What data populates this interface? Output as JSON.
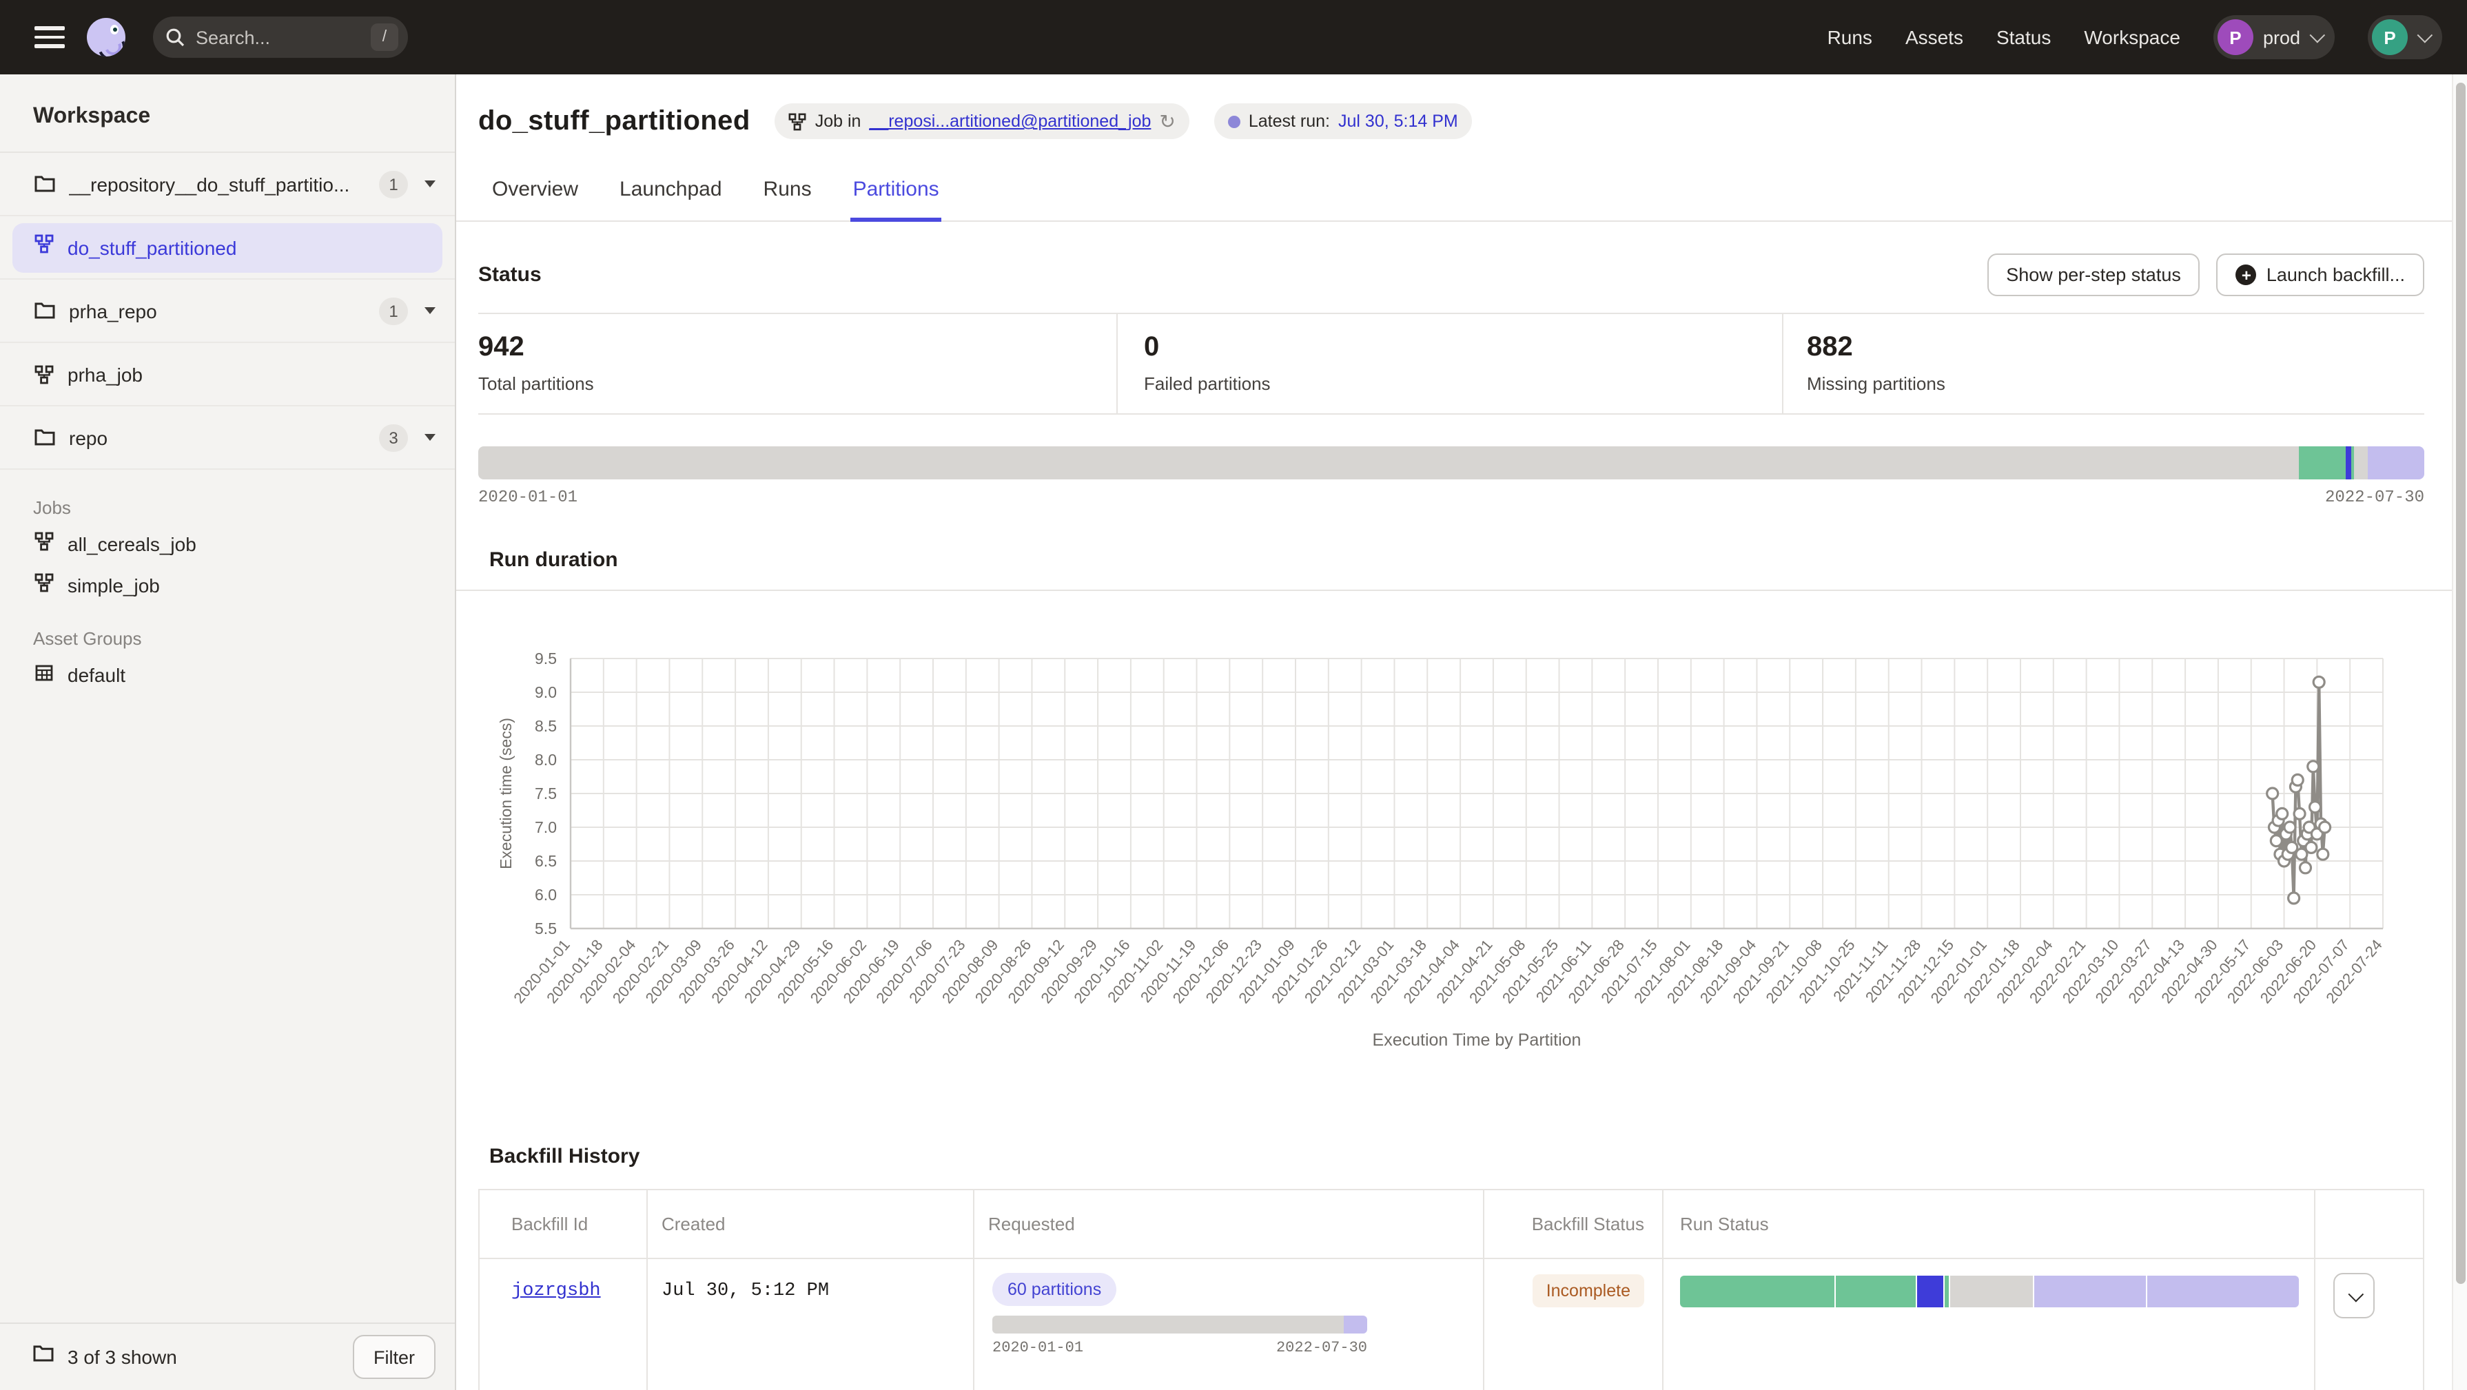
{
  "colors": {
    "accent_blurple": "#4543de",
    "link_blue": "#3231cf",
    "green": "#6ec496",
    "blue_stripe": "#3e3cd9",
    "lavender": "#c3bdee",
    "bar_gray": "#d7d5d2",
    "incomplete_bg": "#f9f1e8",
    "incomplete_text": "#aa5a22",
    "latest_run_dot": "#8d87d8",
    "chart_line": "#8f8c87",
    "avatar_purple": "#9e4bbb",
    "avatar_teal": "#35a183"
  },
  "navbar": {
    "search_placeholder": "Search...",
    "search_shortcut": "/",
    "links": [
      {
        "label": "Runs"
      },
      {
        "label": "Assets"
      },
      {
        "label": "Status"
      },
      {
        "label": "Workspace"
      }
    ],
    "deployment": {
      "initial": "P",
      "label": "prod"
    },
    "user": {
      "initial": "P"
    }
  },
  "sidebar": {
    "title": "Workspace",
    "repos": [
      {
        "label": "__repository__do_stuff_partitio...",
        "count": "1"
      },
      {
        "label": "prha_repo",
        "count": "1"
      },
      {
        "label": "repo",
        "count": "3"
      }
    ],
    "selected_job": "do_stuff_partitioned",
    "standalone_job": "prha_job",
    "sections": {
      "jobs": "Jobs",
      "asset_groups": "Asset Groups"
    },
    "jobs": [
      "all_cereals_job",
      "simple_job"
    ],
    "asset_groups": [
      "default"
    ],
    "footer": {
      "count_label": "3 of 3 shown",
      "filter_label": "Filter"
    }
  },
  "header": {
    "title": "do_stuff_partitioned",
    "job_tag": {
      "prefix": "Job in",
      "link": "__reposi...artitioned@partitioned_job"
    },
    "latest_run": {
      "label": "Latest run:",
      "value": "Jul 30, 5:14 PM"
    }
  },
  "tabs": [
    {
      "label": "Overview",
      "active": false
    },
    {
      "label": "Launchpad",
      "active": false
    },
    {
      "label": "Runs",
      "active": false
    },
    {
      "label": "Partitions",
      "active": true
    }
  ],
  "status_section": {
    "title": "Status",
    "show_per_step_label": "Show per-step status",
    "launch_backfill_label": "Launch backfill...",
    "stats": [
      {
        "value": "942",
        "label": "Total partitions"
      },
      {
        "value": "0",
        "label": "Failed partitions"
      },
      {
        "value": "882",
        "label": "Missing partitions"
      }
    ],
    "bar": {
      "start": "2020-01-01",
      "end": "2022-07-30",
      "segments": [
        {
          "color": "bar_gray",
          "pct": 93.55
        },
        {
          "color": "green",
          "pct": 2.41
        },
        {
          "color": "blue_stripe",
          "pct": 0.32
        },
        {
          "color": "green",
          "pct": 0.1
        },
        {
          "color": "bar_gray",
          "pct": 0.71
        },
        {
          "color": "lavender",
          "pct": 2.91
        }
      ]
    }
  },
  "run_duration_title": "Run duration",
  "chart_data": {
    "type": "line",
    "title": "Run duration",
    "ylabel": "Execution time (secs)",
    "caption": "Execution Time by Partition",
    "ylim": [
      5.5,
      9.5
    ],
    "y_ticks": [
      9.5,
      9.0,
      8.5,
      8.0,
      7.5,
      7.0,
      6.5,
      6.0,
      5.5
    ],
    "grid": true,
    "x_tick_labels": [
      "2020-01-01",
      "2020-01-18",
      "2020-02-04",
      "2020-02-21",
      "2020-03-09",
      "2020-03-26",
      "2020-04-12",
      "2020-04-29",
      "2020-05-16",
      "2020-06-02",
      "2020-06-19",
      "2020-07-06",
      "2020-07-23",
      "2020-08-09",
      "2020-08-26",
      "2020-09-12",
      "2020-09-29",
      "2020-10-16",
      "2020-11-02",
      "2020-11-19",
      "2020-12-06",
      "2020-12-23",
      "2021-01-09",
      "2021-01-26",
      "2021-02-12",
      "2021-03-01",
      "2021-03-18",
      "2021-04-04",
      "2021-04-21",
      "2021-05-08",
      "2021-05-25",
      "2021-06-11",
      "2021-06-28",
      "2021-07-15",
      "2021-08-01",
      "2021-08-18",
      "2021-09-04",
      "2021-09-21",
      "2021-10-08",
      "2021-10-25",
      "2021-11-11",
      "2021-11-28",
      "2021-12-15",
      "2022-01-01",
      "2022-01-18",
      "2022-02-04",
      "2022-02-21",
      "2022-03-10",
      "2022-03-27",
      "2022-04-13",
      "2022-04-30",
      "2022-05-17",
      "2022-06-03",
      "2022-06-20",
      "2022-07-07",
      "2022-07-24"
    ],
    "points": [
      {
        "date": "2022-05-28",
        "secs": 7.5
      },
      {
        "date": "2022-05-29",
        "secs": 7.0
      },
      {
        "date": "2022-05-30",
        "secs": 6.8
      },
      {
        "date": "2022-05-31",
        "secs": 7.1
      },
      {
        "date": "2022-06-01",
        "secs": 6.6
      },
      {
        "date": "2022-06-02",
        "secs": 7.2
      },
      {
        "date": "2022-06-03",
        "secs": 6.5
      },
      {
        "date": "2022-06-04",
        "secs": 6.9
      },
      {
        "date": "2022-06-05",
        "secs": 6.6
      },
      {
        "date": "2022-06-06",
        "secs": 7.0
      },
      {
        "date": "2022-06-07",
        "secs": 6.7
      },
      {
        "date": "2022-06-08",
        "secs": 5.95
      },
      {
        "date": "2022-06-09",
        "secs": 7.6
      },
      {
        "date": "2022-06-10",
        "secs": 7.7
      },
      {
        "date": "2022-06-11",
        "secs": 7.2
      },
      {
        "date": "2022-06-12",
        "secs": 6.6
      },
      {
        "date": "2022-06-13",
        "secs": 6.8
      },
      {
        "date": "2022-06-14",
        "secs": 6.4
      },
      {
        "date": "2022-06-15",
        "secs": 6.9
      },
      {
        "date": "2022-06-16",
        "secs": 7.0
      },
      {
        "date": "2022-06-17",
        "secs": 6.7
      },
      {
        "date": "2022-06-18",
        "secs": 7.9
      },
      {
        "date": "2022-06-19",
        "secs": 7.3
      },
      {
        "date": "2022-06-20",
        "secs": 6.9
      },
      {
        "date": "2022-06-21",
        "secs": 9.15
      },
      {
        "date": "2022-06-22",
        "secs": 7.05
      },
      {
        "date": "2022-06-23",
        "secs": 6.6
      },
      {
        "date": "2022-06-24",
        "secs": 7.0
      }
    ]
  },
  "backfill": {
    "title": "Backfill History",
    "columns": [
      "Backfill Id",
      "Created",
      "Requested",
      "Backfill Status",
      "Run Status"
    ],
    "rows": [
      {
        "id": "jozrgsbh",
        "created": "Jul 30, 5:12 PM",
        "requested": {
          "badge": "60 partitions",
          "start": "2020-01-01",
          "end": "2022-07-30",
          "segments": [
            {
              "color": "bar_gray",
              "pct": 93.8
            },
            {
              "color": "lavender",
              "pct": 6.2
            }
          ]
        },
        "status": "Incomplete",
        "run_status_segments": [
          {
            "color": "green",
            "pct": 25.0
          },
          {
            "color": "green",
            "pct": 13.1
          },
          {
            "color": "blue_stripe",
            "pct": 4.2
          },
          {
            "color": "green",
            "pct": 0.7
          },
          {
            "color": "bar_gray",
            "pct": 13.5
          },
          {
            "color": "lavender",
            "pct": 18.2
          },
          {
            "color": "lavender",
            "pct": 24.6
          }
        ]
      }
    ]
  }
}
